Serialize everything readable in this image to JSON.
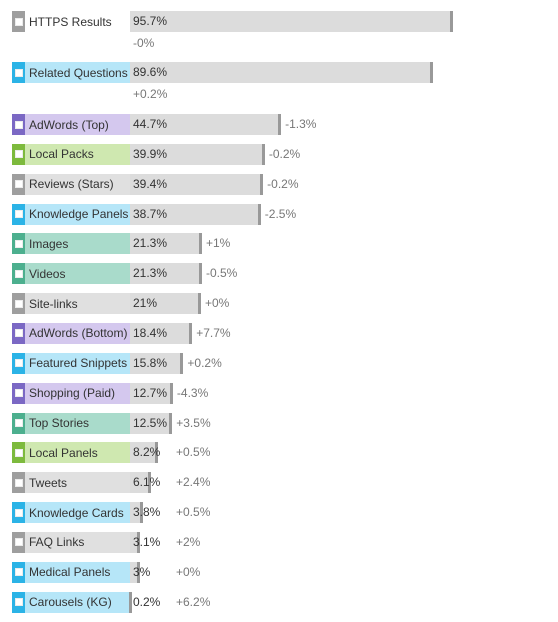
{
  "chart_data": {
    "type": "bar",
    "title": "",
    "xlabel": "",
    "ylabel": "",
    "xlim": [
      0,
      100
    ],
    "categories": [
      "HTTPS Results",
      "Related Questions",
      "AdWords (Top)",
      "Local Packs",
      "Reviews (Stars)",
      "Knowledge Panels",
      "Images",
      "Videos",
      "Site-links",
      "AdWords (Bottom)",
      "Featured Snippets",
      "Shopping (Paid)",
      "Top Stories",
      "Local Panels",
      "Tweets",
      "Knowledge Cards",
      "FAQ Links",
      "Medical Panels",
      "Carousels (KG)"
    ],
    "values": [
      95.7,
      89.6,
      44.7,
      39.9,
      39.4,
      38.7,
      21.3,
      21.3,
      21,
      18.4,
      15.8,
      12.7,
      12.5,
      8.2,
      6.1,
      3.8,
      3.1,
      3,
      0.2
    ],
    "value_labels": [
      "95.7%",
      "89.6%",
      "44.7%",
      "39.9%",
      "39.4%",
      "38.7%",
      "21.3%",
      "21.3%",
      "21%",
      "18.4%",
      "15.8%",
      "12.7%",
      "12.5%",
      "8.2%",
      "6.1%",
      "3.8%",
      "3.1%",
      "3%",
      "0.2%"
    ],
    "changes": [
      "-0%",
      "+0.2%",
      "-1.3%",
      "-0.2%",
      "-0.2%",
      "-2.5%",
      "+1%",
      "-0.5%",
      "+0%",
      "+7.7%",
      "+0.2%",
      "-4.3%",
      "+3.5%",
      "+0.5%",
      "+2.4%",
      "+0.5%",
      "+2%",
      "+0%",
      "+6.2%"
    ],
    "category_colors": [
      "#9e9e9e",
      "#2bb3e6",
      "#7b68c4",
      "#7dba3d",
      "#9e9e9e",
      "#2bb3e6",
      "#4caf8e",
      "#4caf8e",
      "#9e9e9e",
      "#7b68c4",
      "#2bb3e6",
      "#7b68c4",
      "#4caf8e",
      "#7dba3d",
      "#9e9e9e",
      "#2bb3e6",
      "#9e9e9e",
      "#2bb3e6",
      "#2bb3e6"
    ],
    "label_backgrounds": [
      "#ffffff",
      "#b6e6f8",
      "#d4c8ee",
      "#cfe8b0",
      "#e0e0e0",
      "#b6e6f8",
      "#a9dbcb",
      "#a9dbcb",
      "#e0e0e0",
      "#d4c8ee",
      "#b6e6f8",
      "#d4c8ee",
      "#a9dbcb",
      "#cfe8b0",
      "#e0e0e0",
      "#b6e6f8",
      "#e0e0e0",
      "#b6e6f8",
      "#b6e6f8"
    ],
    "grid": false,
    "legend": "none"
  }
}
